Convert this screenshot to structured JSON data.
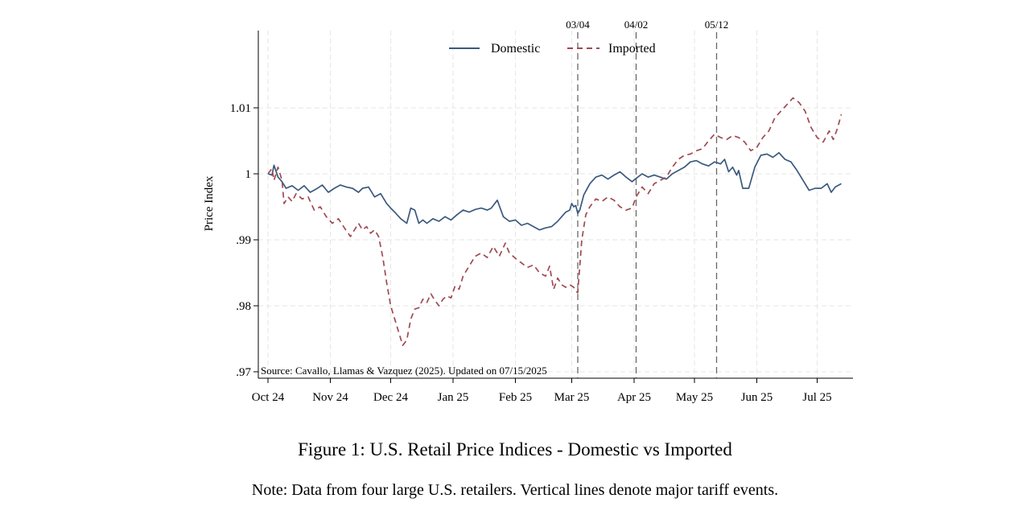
{
  "caption": "Figure 1: U.S. Retail Price Indices - Domestic vs Imported",
  "note": "Note: Data from four large U.S. retailers. Vertical lines denote major tariff events.",
  "chart_data": {
    "type": "line",
    "title": "",
    "xlabel": "",
    "ylabel": "Price Index",
    "xlim": [
      "2024-10-01",
      "2025-07-20"
    ],
    "ylim": [
      0.97,
      1.02
    ],
    "x_ticks": [
      {
        "date": "2024-10-01",
        "label": "Oct 24"
      },
      {
        "date": "2024-11-01",
        "label": "Nov 24"
      },
      {
        "date": "2024-12-01",
        "label": "Dec 24"
      },
      {
        "date": "2025-01-01",
        "label": "Jan 25"
      },
      {
        "date": "2025-02-01",
        "label": "Feb 25"
      },
      {
        "date": "2025-03-01",
        "label": "Mar 25"
      },
      {
        "date": "2025-04-01",
        "label": "Apr 25"
      },
      {
        "date": "2025-05-01",
        "label": "May 25"
      },
      {
        "date": "2025-06-01",
        "label": "Jun 25"
      },
      {
        "date": "2025-07-01",
        "label": "Jul 25"
      }
    ],
    "y_ticks": [
      {
        "value": 0.97,
        "label": ".97"
      },
      {
        "value": 0.98,
        "label": ".98"
      },
      {
        "value": 0.99,
        "label": ".99"
      },
      {
        "value": 1.0,
        "label": "1"
      },
      {
        "value": 1.01,
        "label": "1.01"
      }
    ],
    "grid": true,
    "legend_position": "top",
    "source_note": "Source: Cavallo, Llamas & Vazquez (2025). Updated on 07/15/2025",
    "event_lines": [
      {
        "date": "2025-03-04",
        "label": "03/04"
      },
      {
        "date": "2025-04-02",
        "label": "04/02"
      },
      {
        "date": "2025-05-12",
        "label": "05/12"
      }
    ],
    "series": [
      {
        "name": "Domestic",
        "color": "#3a5a7e",
        "style": "solid",
        "points": [
          [
            "2024-10-01",
            1.0
          ],
          [
            "2024-10-03",
            0.9998
          ],
          [
            "2024-10-04",
            1.0013
          ],
          [
            "2024-10-06",
            0.9995
          ],
          [
            "2024-10-08",
            0.9988
          ],
          [
            "2024-10-10",
            0.9978
          ],
          [
            "2024-10-13",
            0.9982
          ],
          [
            "2024-10-16",
            0.9975
          ],
          [
            "2024-10-19",
            0.9982
          ],
          [
            "2024-10-22",
            0.9972
          ],
          [
            "2024-10-25",
            0.9977
          ],
          [
            "2024-10-28",
            0.9983
          ],
          [
            "2024-10-31",
            0.9972
          ],
          [
            "2024-11-03",
            0.9978
          ],
          [
            "2024-11-06",
            0.9983
          ],
          [
            "2024-11-09",
            0.998
          ],
          [
            "2024-11-12",
            0.9978
          ],
          [
            "2024-11-15",
            0.9972
          ],
          [
            "2024-11-17",
            0.9978
          ],
          [
            "2024-11-20",
            0.998
          ],
          [
            "2024-11-23",
            0.9965
          ],
          [
            "2024-11-26",
            0.997
          ],
          [
            "2024-11-29",
            0.9955
          ],
          [
            "2024-12-01",
            0.9948
          ],
          [
            "2024-12-03",
            0.9942
          ],
          [
            "2024-12-06",
            0.9932
          ],
          [
            "2024-12-09",
            0.9925
          ],
          [
            "2024-12-11",
            0.9948
          ],
          [
            "2024-12-13",
            0.9945
          ],
          [
            "2024-12-15",
            0.9925
          ],
          [
            "2024-12-17",
            0.993
          ],
          [
            "2024-12-19",
            0.9925
          ],
          [
            "2024-12-22",
            0.9932
          ],
          [
            "2024-12-25",
            0.9928
          ],
          [
            "2024-12-28",
            0.9935
          ],
          [
            "2024-12-31",
            0.993
          ],
          [
            "2025-01-03",
            0.9938
          ],
          [
            "2025-01-06",
            0.9945
          ],
          [
            "2025-01-09",
            0.9942
          ],
          [
            "2025-01-12",
            0.9946
          ],
          [
            "2025-01-15",
            0.9948
          ],
          [
            "2025-01-18",
            0.9945
          ],
          [
            "2025-01-20",
            0.9948
          ],
          [
            "2025-01-23",
            0.996
          ],
          [
            "2025-01-26",
            0.9935
          ],
          [
            "2025-01-29",
            0.9928
          ],
          [
            "2025-02-01",
            0.993
          ],
          [
            "2025-02-04",
            0.9922
          ],
          [
            "2025-02-07",
            0.9925
          ],
          [
            "2025-02-10",
            0.992
          ],
          [
            "2025-02-13",
            0.9915
          ],
          [
            "2025-02-16",
            0.9918
          ],
          [
            "2025-02-19",
            0.992
          ],
          [
            "2025-02-22",
            0.9928
          ],
          [
            "2025-02-24",
            0.9935
          ],
          [
            "2025-02-26",
            0.9942
          ],
          [
            "2025-02-28",
            0.9945
          ],
          [
            "2025-03-01",
            0.9955
          ],
          [
            "2025-03-02",
            0.995
          ],
          [
            "2025-03-03",
            0.9952
          ],
          [
            "2025-03-04",
            0.994
          ],
          [
            "2025-03-05",
            0.9945
          ],
          [
            "2025-03-07",
            0.9968
          ],
          [
            "2025-03-10",
            0.9985
          ],
          [
            "2025-03-13",
            0.9995
          ],
          [
            "2025-03-16",
            0.9998
          ],
          [
            "2025-03-19",
            0.9992
          ],
          [
            "2025-03-22",
            0.9998
          ],
          [
            "2025-03-25",
            1.0003
          ],
          [
            "2025-03-28",
            0.9995
          ],
          [
            "2025-03-31",
            0.9988
          ],
          [
            "2025-04-02",
            0.9993
          ],
          [
            "2025-04-05",
            1.0
          ],
          [
            "2025-04-08",
            0.9995
          ],
          [
            "2025-04-11",
            0.9998
          ],
          [
            "2025-04-14",
            0.9995
          ],
          [
            "2025-04-17",
            0.9992
          ],
          [
            "2025-04-20",
            1.0
          ],
          [
            "2025-04-23",
            1.0005
          ],
          [
            "2025-04-26",
            1.001
          ],
          [
            "2025-04-29",
            1.0018
          ],
          [
            "2025-05-02",
            1.002
          ],
          [
            "2025-05-05",
            1.0015
          ],
          [
            "2025-05-08",
            1.0012
          ],
          [
            "2025-05-11",
            1.0018
          ],
          [
            "2025-05-14",
            1.0015
          ],
          [
            "2025-05-16",
            1.0022
          ],
          [
            "2025-05-18",
            1.0003
          ],
          [
            "2025-05-20",
            1.001
          ],
          [
            "2025-05-22",
            0.9998
          ],
          [
            "2025-05-23",
            1.0005
          ],
          [
            "2025-05-25",
            0.9978
          ],
          [
            "2025-05-28",
            0.9978
          ],
          [
            "2025-05-31",
            1.001
          ],
          [
            "2025-06-03",
            1.0028
          ],
          [
            "2025-06-06",
            1.003
          ],
          [
            "2025-06-09",
            1.0025
          ],
          [
            "2025-06-12",
            1.0032
          ],
          [
            "2025-06-15",
            1.0022
          ],
          [
            "2025-06-18",
            1.0018
          ],
          [
            "2025-06-21",
            1.0005
          ],
          [
            "2025-06-24",
            0.999
          ],
          [
            "2025-06-27",
            0.9975
          ],
          [
            "2025-06-30",
            0.9978
          ],
          [
            "2025-07-03",
            0.9978
          ],
          [
            "2025-07-06",
            0.9985
          ],
          [
            "2025-07-08",
            0.9972
          ],
          [
            "2025-07-10",
            0.998
          ],
          [
            "2025-07-13",
            0.9985
          ]
        ]
      },
      {
        "name": "Imported",
        "color": "#a04a52",
        "style": "dashed",
        "points": [
          [
            "2024-10-01",
            1.0
          ],
          [
            "2024-10-03",
            1.0008
          ],
          [
            "2024-10-04",
            0.999
          ],
          [
            "2024-10-06",
            1.001
          ],
          [
            "2024-10-08",
            0.999
          ],
          [
            "2024-10-09",
            0.9955
          ],
          [
            "2024-10-11",
            0.9965
          ],
          [
            "2024-10-13",
            0.9958
          ],
          [
            "2024-10-15",
            0.997
          ],
          [
            "2024-10-18",
            0.9962
          ],
          [
            "2024-10-21",
            0.9965
          ],
          [
            "2024-10-24",
            0.9945
          ],
          [
            "2024-10-27",
            0.995
          ],
          [
            "2024-10-30",
            0.9935
          ],
          [
            "2024-11-02",
            0.9925
          ],
          [
            "2024-11-05",
            0.9932
          ],
          [
            "2024-11-08",
            0.9918
          ],
          [
            "2024-11-11",
            0.9905
          ],
          [
            "2024-11-13",
            0.9915
          ],
          [
            "2024-11-15",
            0.9925
          ],
          [
            "2024-11-17",
            0.9915
          ],
          [
            "2024-11-19",
            0.992
          ],
          [
            "2024-11-21",
            0.991
          ],
          [
            "2024-11-23",
            0.9915
          ],
          [
            "2024-11-25",
            0.9905
          ],
          [
            "2024-11-27",
            0.9875
          ],
          [
            "2024-11-29",
            0.9835
          ],
          [
            "2024-12-01",
            0.98
          ],
          [
            "2024-12-03",
            0.978
          ],
          [
            "2024-12-05",
            0.976
          ],
          [
            "2024-12-07",
            0.974
          ],
          [
            "2024-12-09",
            0.9748
          ],
          [
            "2024-12-11",
            0.978
          ],
          [
            "2024-12-13",
            0.9795
          ],
          [
            "2024-12-15",
            0.9797
          ],
          [
            "2024-12-17",
            0.981
          ],
          [
            "2024-12-19",
            0.9805
          ],
          [
            "2024-12-21",
            0.9818
          ],
          [
            "2024-12-23",
            0.9808
          ],
          [
            "2024-12-25",
            0.98
          ],
          [
            "2024-12-27",
            0.981
          ],
          [
            "2024-12-29",
            0.9815
          ],
          [
            "2024-12-31",
            0.9812
          ],
          [
            "2025-01-02",
            0.983
          ],
          [
            "2025-01-04",
            0.9825
          ],
          [
            "2025-01-06",
            0.9845
          ],
          [
            "2025-01-09",
            0.986
          ],
          [
            "2025-01-12",
            0.9875
          ],
          [
            "2025-01-15",
            0.988
          ],
          [
            "2025-01-18",
            0.9873
          ],
          [
            "2025-01-21",
            0.989
          ],
          [
            "2025-01-24",
            0.9875
          ],
          [
            "2025-01-27",
            0.9895
          ],
          [
            "2025-01-29",
            0.988
          ],
          [
            "2025-02-01",
            0.9872
          ],
          [
            "2025-02-04",
            0.9865
          ],
          [
            "2025-02-07",
            0.9858
          ],
          [
            "2025-02-10",
            0.9862
          ],
          [
            "2025-02-13",
            0.985
          ],
          [
            "2025-02-16",
            0.9845
          ],
          [
            "2025-02-18",
            0.986
          ],
          [
            "2025-02-20",
            0.9825
          ],
          [
            "2025-02-22",
            0.9842
          ],
          [
            "2025-02-24",
            0.9832
          ],
          [
            "2025-02-26",
            0.9828
          ],
          [
            "2025-02-28",
            0.9832
          ],
          [
            "2025-03-02",
            0.9828
          ],
          [
            "2025-03-03",
            0.9822
          ],
          [
            "2025-03-04",
            0.982
          ],
          [
            "2025-03-05",
            0.986
          ],
          [
            "2025-03-06",
            0.99
          ],
          [
            "2025-03-08",
            0.9938
          ],
          [
            "2025-03-10",
            0.995
          ],
          [
            "2025-03-13",
            0.9962
          ],
          [
            "2025-03-16",
            0.9958
          ],
          [
            "2025-03-19",
            0.9965
          ],
          [
            "2025-03-22",
            0.996
          ],
          [
            "2025-03-25",
            0.995
          ],
          [
            "2025-03-28",
            0.9945
          ],
          [
            "2025-03-31",
            0.9948
          ],
          [
            "2025-04-02",
            0.9965
          ],
          [
            "2025-04-05",
            0.998
          ],
          [
            "2025-04-08",
            0.997
          ],
          [
            "2025-04-11",
            0.9985
          ],
          [
            "2025-04-14",
            0.999
          ],
          [
            "2025-04-17",
            0.9995
          ],
          [
            "2025-04-20",
            1.001
          ],
          [
            "2025-04-23",
            1.0022
          ],
          [
            "2025-04-26",
            1.0028
          ],
          [
            "2025-04-29",
            1.003
          ],
          [
            "2025-05-02",
            1.0035
          ],
          [
            "2025-05-05",
            1.0038
          ],
          [
            "2025-05-08",
            1.005
          ],
          [
            "2025-05-11",
            1.006
          ],
          [
            "2025-05-14",
            1.0055
          ],
          [
            "2025-05-17",
            1.0052
          ],
          [
            "2025-05-20",
            1.0058
          ],
          [
            "2025-05-23",
            1.0055
          ],
          [
            "2025-05-26",
            1.0048
          ],
          [
            "2025-05-29",
            1.0035
          ],
          [
            "2025-06-01",
            1.004
          ],
          [
            "2025-06-04",
            1.0055
          ],
          [
            "2025-06-07",
            1.0065
          ],
          [
            "2025-06-10",
            1.0085
          ],
          [
            "2025-06-13",
            1.0095
          ],
          [
            "2025-06-16",
            1.0105
          ],
          [
            "2025-06-19",
            1.0115
          ],
          [
            "2025-06-22",
            1.0108
          ],
          [
            "2025-06-25",
            1.0095
          ],
          [
            "2025-06-28",
            1.007
          ],
          [
            "2025-07-01",
            1.0055
          ],
          [
            "2025-07-04",
            1.0048
          ],
          [
            "2025-07-07",
            1.0065
          ],
          [
            "2025-07-09",
            1.0052
          ],
          [
            "2025-07-11",
            1.0068
          ],
          [
            "2025-07-13",
            1.009
          ]
        ]
      }
    ]
  }
}
